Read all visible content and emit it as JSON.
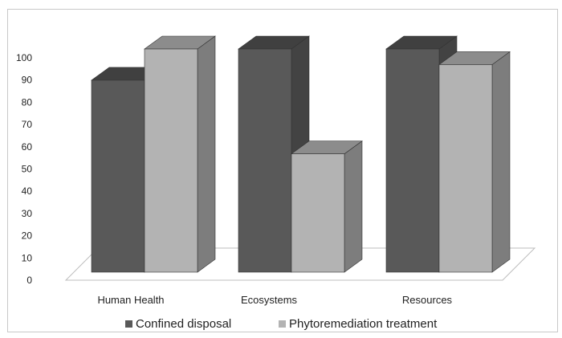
{
  "chart_data": {
    "type": "bar",
    "style": "3d-clustered-column",
    "categories": [
      "Human Health",
      "Ecosystems",
      "Resources"
    ],
    "series": [
      {
        "name": "Confined disposal",
        "values": [
          86,
          100,
          100
        ],
        "color": "#595959"
      },
      {
        "name": "Phytoremediation treatment",
        "values": [
          100,
          53,
          93
        ],
        "color": "#b3b3b3"
      }
    ],
    "title": "",
    "xlabel": "",
    "ylabel": "",
    "ylim": [
      0,
      100
    ],
    "yticks": [
      0,
      10,
      20,
      30,
      40,
      50,
      60,
      70,
      80,
      90,
      100
    ],
    "grid": false,
    "legend_position": "bottom"
  }
}
